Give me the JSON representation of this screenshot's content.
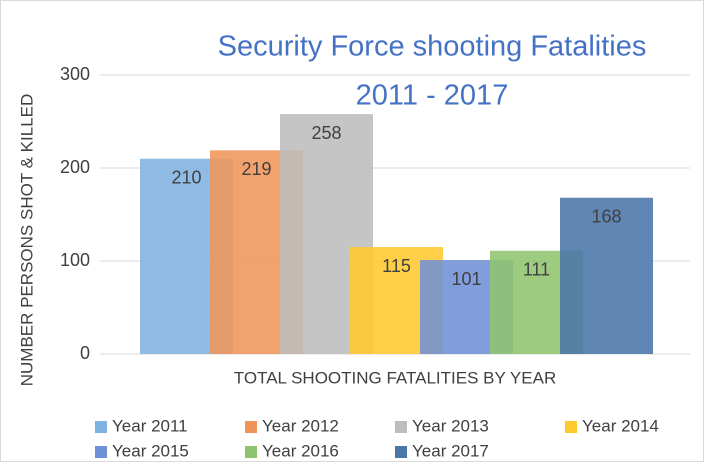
{
  "chart_data": {
    "type": "bar",
    "title": "Security Force shooting Fatalities",
    "subtitle": "2011 - 2017",
    "ylabel": "NUMBER PERSONS SHOT & KILLED",
    "categories": [
      "TOTAL SHOOTING FATALITIES BY YEAR"
    ],
    "series": [
      {
        "name": "Year 2011",
        "color": "#7fb2e0",
        "values": [
          210
        ]
      },
      {
        "name": "Year 2012",
        "color": "#f0955a",
        "values": [
          219
        ]
      },
      {
        "name": "Year 2013",
        "color": "#bdbdbd",
        "values": [
          258
        ]
      },
      {
        "name": "Year 2014",
        "color": "#ffc92e",
        "values": [
          115
        ]
      },
      {
        "name": "Year 2015",
        "color": "#6f8fd6",
        "values": [
          101
        ]
      },
      {
        "name": "Year 2016",
        "color": "#8fc46e",
        "values": [
          111
        ]
      },
      {
        "name": "Year 2017",
        "color": "#4a76a8",
        "values": [
          168
        ]
      }
    ],
    "ylim": [
      0,
      300
    ],
    "yticks": [
      0,
      100,
      200,
      300
    ],
    "grid": true,
    "legend": "bottom"
  }
}
